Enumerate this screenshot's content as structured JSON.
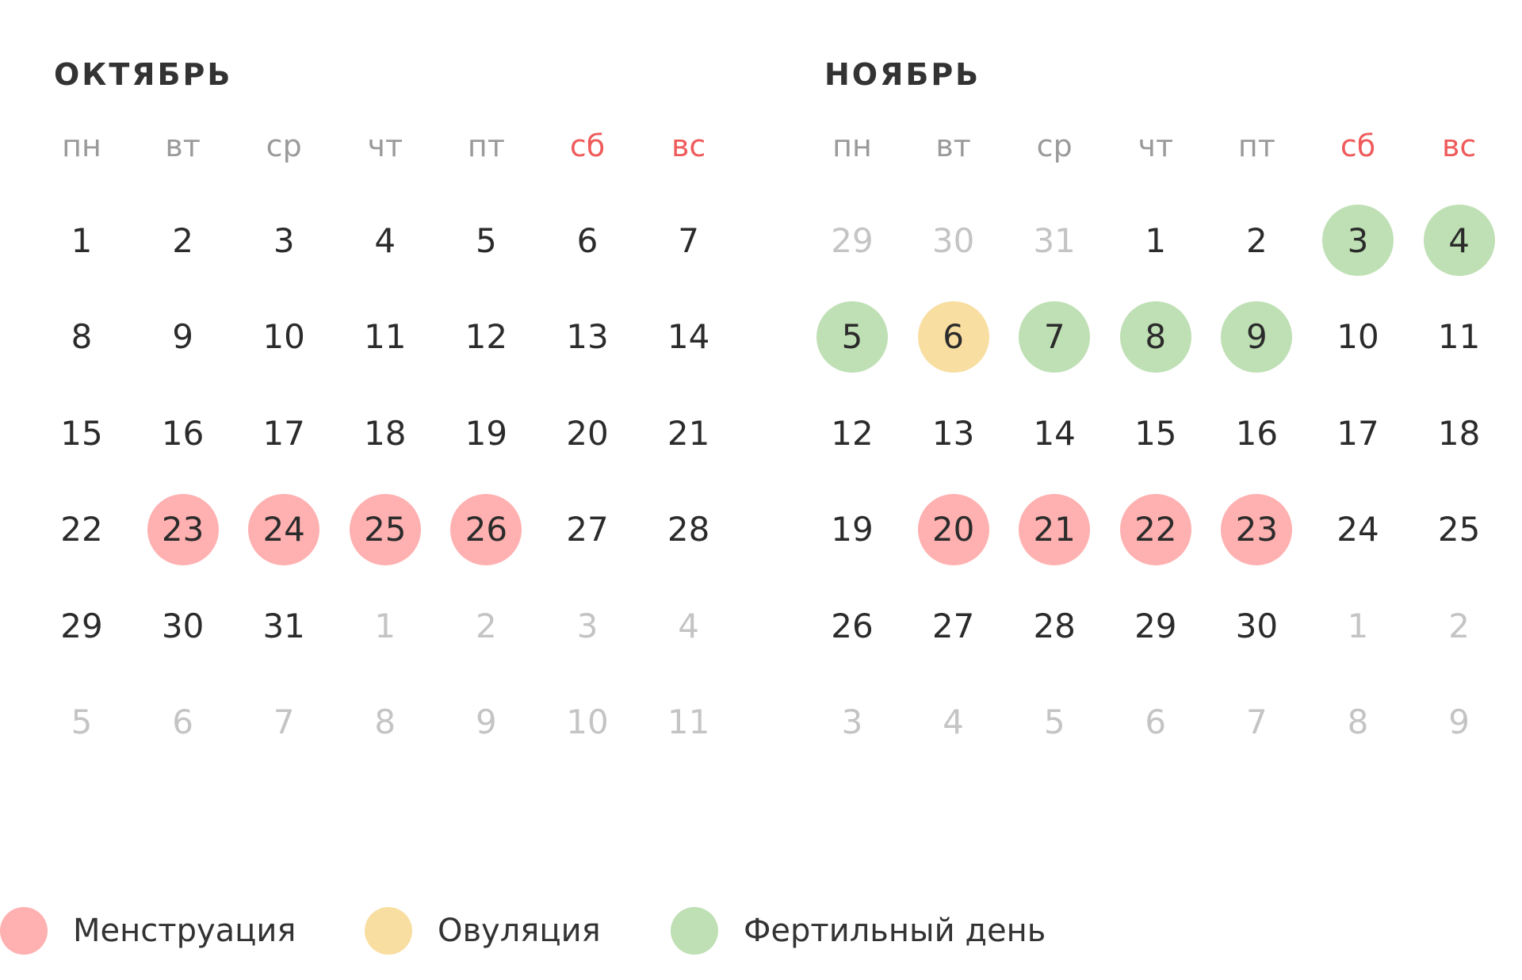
{
  "colors": {
    "menstruation": "#ffb0b0",
    "ovulation": "#f8dea0",
    "fertile": "#bfe0b4",
    "weekend": "#ef5b5b",
    "other_month": "#c4c4c4",
    "text": "#2b2b2b"
  },
  "weekdays": [
    "пн",
    "вт",
    "ср",
    "чт",
    "пт",
    "сб",
    "вс"
  ],
  "weekend_index": [
    5,
    6
  ],
  "months": [
    {
      "name": "ОКТЯБРЬ",
      "weeks": [
        [
          {
            "d": "1"
          },
          {
            "d": "2"
          },
          {
            "d": "3"
          },
          {
            "d": "4"
          },
          {
            "d": "5"
          },
          {
            "d": "6"
          },
          {
            "d": "7"
          }
        ],
        [
          {
            "d": "8"
          },
          {
            "d": "9"
          },
          {
            "d": "10"
          },
          {
            "d": "11"
          },
          {
            "d": "12"
          },
          {
            "d": "13"
          },
          {
            "d": "14"
          }
        ],
        [
          {
            "d": "15"
          },
          {
            "d": "16"
          },
          {
            "d": "17"
          },
          {
            "d": "18"
          },
          {
            "d": "19"
          },
          {
            "d": "20"
          },
          {
            "d": "21"
          }
        ],
        [
          {
            "d": "22"
          },
          {
            "d": "23",
            "mark": "menstruation"
          },
          {
            "d": "24",
            "mark": "menstruation"
          },
          {
            "d": "25",
            "mark": "menstruation"
          },
          {
            "d": "26",
            "mark": "menstruation"
          },
          {
            "d": "27"
          },
          {
            "d": "28"
          }
        ],
        [
          {
            "d": "29"
          },
          {
            "d": "30"
          },
          {
            "d": "31"
          },
          {
            "d": "1",
            "other": true
          },
          {
            "d": "2",
            "other": true
          },
          {
            "d": "3",
            "other": true
          },
          {
            "d": "4",
            "other": true
          }
        ],
        [
          {
            "d": "5",
            "other": true
          },
          {
            "d": "6",
            "other": true
          },
          {
            "d": "7",
            "other": true
          },
          {
            "d": "8",
            "other": true
          },
          {
            "d": "9",
            "other": true
          },
          {
            "d": "10",
            "other": true
          },
          {
            "d": "11",
            "other": true
          }
        ]
      ]
    },
    {
      "name": "НОЯБРЬ",
      "weeks": [
        [
          {
            "d": "29",
            "other": true
          },
          {
            "d": "30",
            "other": true
          },
          {
            "d": "31",
            "other": true
          },
          {
            "d": "1"
          },
          {
            "d": "2"
          },
          {
            "d": "3",
            "mark": "fertile"
          },
          {
            "d": "4",
            "mark": "fertile"
          }
        ],
        [
          {
            "d": "5",
            "mark": "fertile"
          },
          {
            "d": "6",
            "mark": "ovulation"
          },
          {
            "d": "7",
            "mark": "fertile"
          },
          {
            "d": "8",
            "mark": "fertile"
          },
          {
            "d": "9",
            "mark": "fertile"
          },
          {
            "d": "10"
          },
          {
            "d": "11"
          }
        ],
        [
          {
            "d": "12"
          },
          {
            "d": "13"
          },
          {
            "d": "14"
          },
          {
            "d": "15"
          },
          {
            "d": "16"
          },
          {
            "d": "17"
          },
          {
            "d": "18"
          }
        ],
        [
          {
            "d": "19"
          },
          {
            "d": "20",
            "mark": "menstruation"
          },
          {
            "d": "21",
            "mark": "menstruation"
          },
          {
            "d": "22",
            "mark": "menstruation"
          },
          {
            "d": "23",
            "mark": "menstruation"
          },
          {
            "d": "24"
          },
          {
            "d": "25"
          }
        ],
        [
          {
            "d": "26"
          },
          {
            "d": "27"
          },
          {
            "d": "28"
          },
          {
            "d": "29"
          },
          {
            "d": "30"
          },
          {
            "d": "1",
            "other": true
          },
          {
            "d": "2",
            "other": true
          }
        ],
        [
          {
            "d": "3",
            "other": true
          },
          {
            "d": "4",
            "other": true
          },
          {
            "d": "5",
            "other": true
          },
          {
            "d": "6",
            "other": true
          },
          {
            "d": "7",
            "other": true
          },
          {
            "d": "8",
            "other": true
          },
          {
            "d": "9",
            "other": true
          }
        ]
      ]
    }
  ],
  "legend": [
    {
      "key": "menstruation",
      "label": "Менструация"
    },
    {
      "key": "ovulation",
      "label": "Овуляция"
    },
    {
      "key": "fertile",
      "label": "Фертильный день"
    }
  ]
}
